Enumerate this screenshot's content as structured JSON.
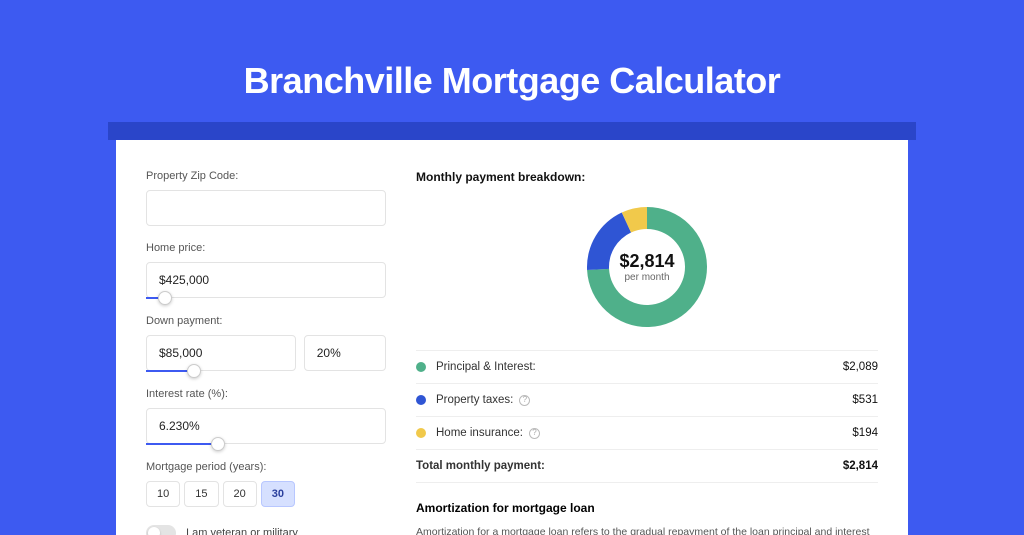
{
  "title": "Branchville Mortgage Calculator",
  "colors": {
    "page_bg": "#3d5af1",
    "shadow_bar": "#2a45c9",
    "card_bg": "#ffffff",
    "slider_fill": "#3d5af1"
  },
  "form": {
    "zip": {
      "label": "Property Zip Code:",
      "value": ""
    },
    "home_price": {
      "label": "Home price:",
      "value": "$425,000",
      "slider_pct": 8
    },
    "down_payment": {
      "label": "Down payment:",
      "amount": "$85,000",
      "pct": "20%",
      "slider_pct": 20
    },
    "interest_rate": {
      "label": "Interest rate (%):",
      "value": "6.230%",
      "slider_pct": 30
    },
    "period": {
      "label": "Mortgage period (years):",
      "options": [
        "10",
        "15",
        "20",
        "30"
      ],
      "active_index": 3
    },
    "veteran": {
      "label": "I am veteran or military",
      "on": false
    }
  },
  "breakdown": {
    "title": "Monthly payment breakdown:",
    "donut": {
      "amount": "$2,814",
      "sub": "per month",
      "outer_radius": 60,
      "inner_radius": 38,
      "background": "#ffffff",
      "segments": [
        {
          "label": "Principal & Interest:",
          "value": "$2,089",
          "color": "#4fb08a",
          "pct": 74.2
        },
        {
          "label": "Property taxes:",
          "value": "$531",
          "color": "#2f55d4",
          "pct": 18.9,
          "info": true
        },
        {
          "label": "Home insurance:",
          "value": "$194",
          "color": "#f1c94b",
          "pct": 6.9,
          "info": true
        }
      ]
    },
    "total": {
      "label": "Total monthly payment:",
      "value": "$2,814"
    }
  },
  "amortization": {
    "title": "Amortization for mortgage loan",
    "text": "Amortization for a mortgage loan refers to the gradual repayment of the loan principal and interest over a specified"
  }
}
